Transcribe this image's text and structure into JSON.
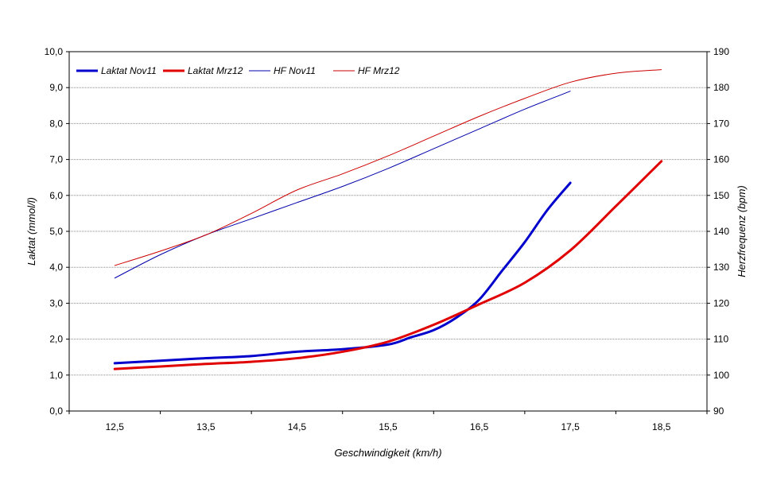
{
  "chart_data": {
    "type": "line",
    "title": "",
    "xlabel": "Geschwindigkeit (km/h)",
    "ylabel": "Laktat (mmol/l)",
    "y2label": "Herzfrequenz (bpm)",
    "x_ticks": [
      "12,5",
      "13,5",
      "14,5",
      "15,5",
      "16,5",
      "17,5",
      "18,5"
    ],
    "y_ticks": [
      "0,0",
      "1,0",
      "2,0",
      "3,0",
      "4,0",
      "5,0",
      "6,0",
      "7,0",
      "8,0",
      "9,0",
      "10,0"
    ],
    "y2_ticks": [
      "90",
      "100",
      "110",
      "120",
      "130",
      "140",
      "150",
      "160",
      "170",
      "180",
      "190"
    ],
    "xlim": [
      12,
      19
    ],
    "ylim": [
      0,
      10
    ],
    "y2lim": [
      90,
      190
    ],
    "grid": true,
    "legend_position": "top-left",
    "series": [
      {
        "name": "Laktat Nov11",
        "axis": "left",
        "color": "#0000cc",
        "width": 3,
        "points": [
          [
            12.5,
            1.33
          ],
          [
            13.0,
            1.4
          ],
          [
            13.5,
            1.47
          ],
          [
            14.0,
            1.53
          ],
          [
            14.5,
            1.65
          ],
          [
            15.0,
            1.72
          ],
          [
            15.5,
            1.85
          ],
          [
            15.75,
            2.05
          ],
          [
            16.0,
            2.25
          ],
          [
            16.25,
            2.6
          ],
          [
            16.5,
            3.1
          ],
          [
            16.75,
            3.9
          ],
          [
            17.0,
            4.7
          ],
          [
            17.25,
            5.6
          ],
          [
            17.5,
            6.35
          ]
        ]
      },
      {
        "name": "Laktat Mrz12",
        "axis": "left",
        "color": "#e00000",
        "width": 3,
        "points": [
          [
            12.5,
            1.17
          ],
          [
            13.0,
            1.24
          ],
          [
            13.5,
            1.31
          ],
          [
            14.0,
            1.37
          ],
          [
            14.5,
            1.47
          ],
          [
            15.0,
            1.65
          ],
          [
            15.5,
            1.93
          ],
          [
            16.0,
            2.4
          ],
          [
            16.5,
            2.97
          ],
          [
            17.0,
            3.57
          ],
          [
            17.5,
            4.47
          ],
          [
            18.0,
            5.7
          ],
          [
            18.5,
            6.95
          ]
        ]
      },
      {
        "name": "HF Nov11",
        "axis": "right",
        "color": "#0000aa",
        "width": 1,
        "points": [
          [
            12.5,
            127
          ],
          [
            13.0,
            133.5
          ],
          [
            13.5,
            139
          ],
          [
            14.0,
            143.5
          ],
          [
            14.5,
            148
          ],
          [
            15.0,
            152.5
          ],
          [
            15.5,
            157.5
          ],
          [
            16.0,
            163
          ],
          [
            16.5,
            168.5
          ],
          [
            17.0,
            174
          ],
          [
            17.5,
            179
          ]
        ]
      },
      {
        "name": "HF Mrz12",
        "axis": "right",
        "color": "#cc0000",
        "width": 1,
        "points": [
          [
            12.5,
            130.5
          ],
          [
            13.0,
            134.5
          ],
          [
            13.5,
            139
          ],
          [
            14.0,
            145
          ],
          [
            14.5,
            151.5
          ],
          [
            15.0,
            156
          ],
          [
            15.5,
            161
          ],
          [
            16.0,
            166.5
          ],
          [
            16.5,
            172
          ],
          [
            17.0,
            177
          ],
          [
            17.5,
            181.5
          ],
          [
            18.0,
            184
          ],
          [
            18.5,
            185
          ]
        ]
      }
    ]
  }
}
